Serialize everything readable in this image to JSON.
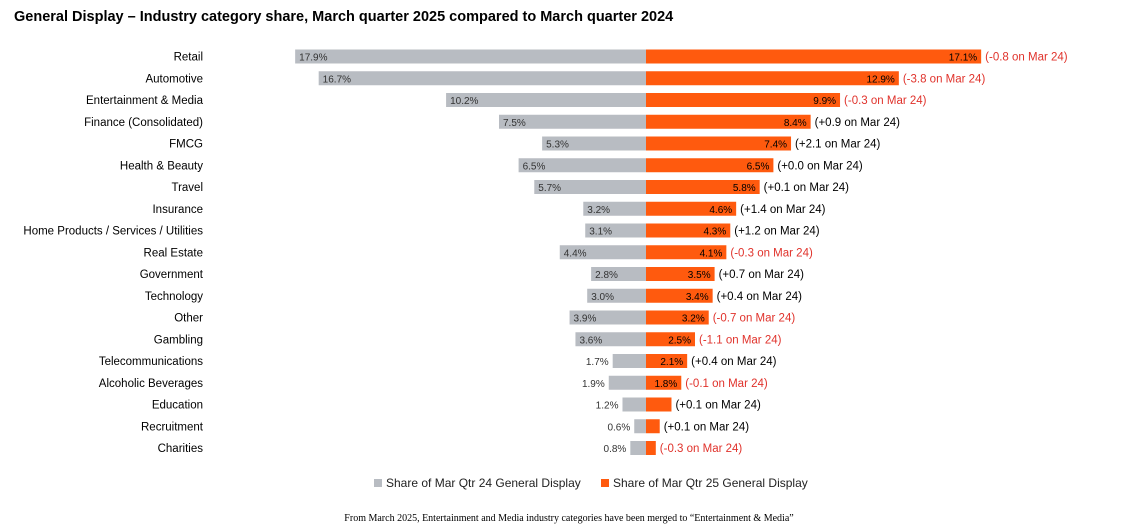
{
  "colors": {
    "prior": "#b8bcc2",
    "current": "#ff5a0e",
    "negative_change": "#e0322b",
    "positive_change": "#000000"
  },
  "chart_data": {
    "type": "bar",
    "title": "General Display – Industry category share, March quarter 2025 compared to March quarter 2024",
    "categories": [
      "Retail",
      "Automotive",
      "Entertainment & Media",
      "Finance (Consolidated)",
      "FMCG",
      "Health & Beauty",
      "Travel",
      "Insurance",
      "Home Products / Services / Utilities",
      "Real Estate",
      "Government",
      "Technology",
      "Other",
      "Gambling",
      "Telecommunications",
      "Alcoholic Beverages",
      "Education",
      "Recruitment",
      "Charities"
    ],
    "series": [
      {
        "name": "Share of Mar Qtr 24 General Display",
        "values": [
          17.9,
          16.7,
          10.2,
          7.5,
          5.3,
          6.5,
          5.7,
          3.2,
          3.1,
          4.4,
          2.8,
          3.0,
          3.9,
          3.6,
          1.7,
          1.9,
          1.2,
          0.6,
          0.8
        ],
        "labels": [
          "17.9%",
          "16.7%",
          "10.2%",
          "7.5%",
          "5.3%",
          "6.5%",
          "5.7%",
          "3.2%",
          "3.1%",
          "4.4%",
          "2.8%",
          "3.0%",
          "3.9%",
          "3.6%",
          "1.7%",
          "1.9%",
          "1.2%",
          "0.6%",
          "0.8%"
        ]
      },
      {
        "name": "Share of Mar Qtr 25 General Display",
        "values": [
          17.1,
          12.9,
          9.9,
          8.4,
          7.4,
          6.5,
          5.8,
          4.6,
          4.3,
          4.1,
          3.5,
          3.4,
          3.2,
          2.5,
          2.1,
          1.8,
          1.3,
          0.7,
          0.5
        ],
        "labels": [
          "17.1%",
          "12.9%",
          "9.9%",
          "8.4%",
          "7.4%",
          "6.5%",
          "5.8%",
          "4.6%",
          "4.3%",
          "4.1%",
          "3.5%",
          "3.4%",
          "3.2%",
          "2.5%",
          "2.1%",
          "1.8%",
          "",
          "",
          ""
        ]
      }
    ],
    "change_labels": [
      "(-0.8 on Mar 24)",
      "(-3.8 on Mar 24)",
      "(-0.3 on Mar 24)",
      "(+0.9 on Mar 24)",
      "(+2.1 on Mar 24)",
      "(+0.0 on Mar 24)",
      "(+0.1 on Mar 24)",
      "(+1.4 on Mar 24)",
      "(+1.2 on Mar 24)",
      "(-0.3 on Mar 24)",
      "(+0.7 on Mar 24)",
      "(+0.4 on Mar 24)",
      "(-0.7 on Mar 24)",
      "(-1.1 on Mar 24)",
      "(+0.4 on Mar 24)",
      "(-0.1 on Mar 24)",
      "(+0.1 on Mar 24)",
      "(+0.1 on Mar 24)",
      "(-0.3 on Mar 24)"
    ],
    "change_negative": [
      true,
      true,
      true,
      false,
      false,
      false,
      false,
      false,
      false,
      true,
      false,
      false,
      true,
      true,
      false,
      true,
      false,
      false,
      true
    ],
    "legend_position": "bottom",
    "grid": false
  },
  "footnote": "From March 2025, Entertainment and Media industry categories have been merged to “Entertainment & Media”"
}
